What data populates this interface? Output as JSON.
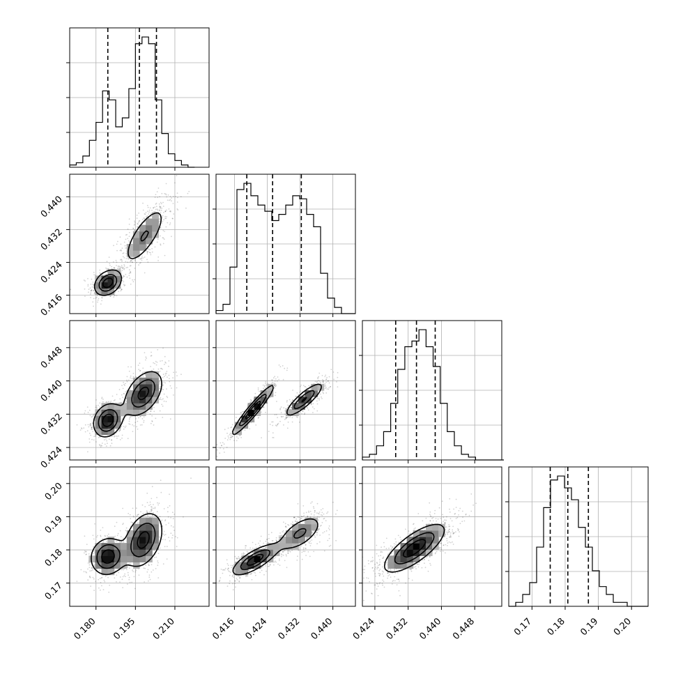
{
  "chart_data": {
    "type": "corner",
    "parameters": [
      {
        "name": "",
        "range": [
          0.17,
          0.223
        ],
        "ticks": [
          0.18,
          0.195,
          0.21
        ],
        "tick_labels": [
          "0.180",
          "0.195",
          "0.210"
        ],
        "quantiles": [
          0.1845,
          0.1965,
          0.203
        ],
        "hist": {
          "edges_start": 0.17,
          "bin_width": 0.0025,
          "counts": [
            1,
            2,
            5,
            12,
            20,
            34,
            30,
            18,
            22,
            35,
            55,
            58,
            55,
            30,
            15,
            6,
            3,
            1,
            0
          ]
        }
      },
      {
        "name": "",
        "range": [
          0.4115,
          0.4455
        ],
        "ticks": [
          0.416,
          0.424,
          0.432,
          0.44
        ],
        "tick_labels": [
          "0.416",
          "0.424",
          "0.432",
          "0.440"
        ],
        "quantiles": [
          0.419,
          0.4253,
          0.4323
        ],
        "hist": {
          "edges_start": 0.4115,
          "bin_width": 0.0017,
          "counts": [
            1,
            3,
            15,
            40,
            42,
            38,
            35,
            33,
            30,
            32,
            35,
            38,
            37,
            32,
            28,
            13,
            5,
            2,
            0,
            0
          ]
        }
      },
      {
        "name": "",
        "range": [
          0.421,
          0.4545
        ],
        "ticks": [
          0.424,
          0.432,
          0.44,
          0.448
        ],
        "tick_labels": [
          "0.424",
          "0.432",
          "0.440",
          "0.448"
        ],
        "quantiles": [
          0.429,
          0.434,
          0.4385
        ],
        "hist": {
          "edges_start": 0.421,
          "bin_width": 0.0017,
          "counts": [
            1,
            2,
            5,
            10,
            20,
            32,
            40,
            42,
            46,
            40,
            33,
            20,
            10,
            5,
            2,
            1,
            0,
            0,
            0,
            0
          ]
        }
      },
      {
        "name": "",
        "range": [
          0.163,
          0.205
        ],
        "ticks": [
          0.17,
          0.18,
          0.19,
          0.2
        ],
        "tick_labels": [
          "0.17",
          "0.18",
          "0.19",
          "0.20"
        ],
        "quantiles": [
          0.1755,
          0.1808,
          0.187
        ],
        "hist": {
          "edges_start": 0.163,
          "bin_width": 0.0021,
          "counts": [
            0,
            1,
            3,
            6,
            15,
            25,
            32,
            33,
            30,
            27,
            20,
            15,
            9,
            5,
            3,
            1,
            1,
            0,
            0,
            0
          ]
        }
      }
    ],
    "pairs": [
      {
        "x": 0,
        "y": 1,
        "modes": [
          {
            "cx": 0.1845,
            "cy": 0.419,
            "sx": 0.0028,
            "sy": 0.0017,
            "rho": 0.3,
            "w": 0.42
          },
          {
            "cx": 0.1985,
            "cy": 0.4305,
            "sx": 0.0045,
            "sy": 0.004,
            "rho": 0.75,
            "w": 0.58
          }
        ]
      },
      {
        "x": 0,
        "y": 2,
        "modes": [
          {
            "cx": 0.1845,
            "cy": 0.4305,
            "sx": 0.003,
            "sy": 0.0022,
            "rho": 0.2,
            "w": 0.4
          },
          {
            "cx": 0.198,
            "cy": 0.437,
            "sx": 0.004,
            "sy": 0.003,
            "rho": 0.45,
            "w": 0.6
          }
        ]
      },
      {
        "x": 0,
        "y": 3,
        "modes": [
          {
            "cx": 0.1845,
            "cy": 0.178,
            "sx": 0.0035,
            "sy": 0.003,
            "rho": 0.1,
            "w": 0.4
          },
          {
            "cx": 0.198,
            "cy": 0.183,
            "sx": 0.004,
            "sy": 0.0045,
            "rho": 0.35,
            "w": 0.6
          }
        ]
      },
      {
        "x": 1,
        "y": 2,
        "modes": [
          {
            "cx": 0.4205,
            "cy": 0.433,
            "sx": 0.0028,
            "sy": 0.0033,
            "rho": 0.95,
            "w": 0.55
          },
          {
            "cx": 0.433,
            "cy": 0.4355,
            "sx": 0.0025,
            "sy": 0.0022,
            "rho": 0.85,
            "w": 0.45
          }
        ]
      },
      {
        "x": 1,
        "y": 3,
        "modes": [
          {
            "cx": 0.421,
            "cy": 0.177,
            "sx": 0.003,
            "sy": 0.0025,
            "rho": 0.75,
            "w": 0.55
          },
          {
            "cx": 0.432,
            "cy": 0.185,
            "sx": 0.003,
            "sy": 0.003,
            "rho": 0.6,
            "w": 0.45
          }
        ]
      },
      {
        "x": 2,
        "y": 3,
        "modes": [
          {
            "cx": 0.4335,
            "cy": 0.1805,
            "sx": 0.004,
            "sy": 0.004,
            "rho": 0.75,
            "w": 1.0
          }
        ]
      }
    ],
    "levels": [
      0.2,
      0.5,
      0.8
    ],
    "grid": true,
    "legend": "none"
  }
}
